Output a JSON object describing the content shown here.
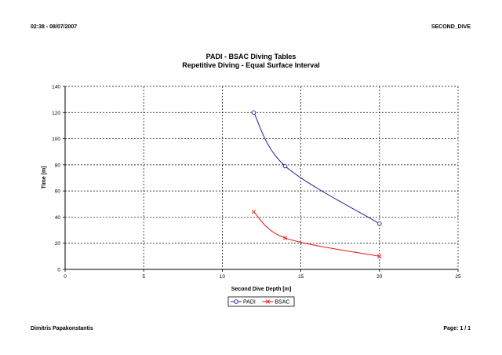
{
  "header": {
    "left": "02:38 - 08/07/2007",
    "right": "SECOND_DIVE"
  },
  "footer": {
    "left": "Dimitris Papakonstantis",
    "right": "Page: 1 / 1"
  },
  "colors": {
    "padi": "#1f1fa0",
    "bsac": "#ee1111",
    "grid": "#000000"
  },
  "chart_data": {
    "type": "line",
    "title": "PADI - BSAC Diving Tables",
    "subtitle": "Repetitive Diving - Equal Surface Interval",
    "xlabel": "Second Dive Depth [m]",
    "ylabel": "Time [m]",
    "xlim": [
      0,
      25
    ],
    "ylim": [
      0,
      140
    ],
    "xticks": [
      0,
      5,
      10,
      15,
      20,
      25
    ],
    "yticks": [
      0,
      20,
      40,
      60,
      80,
      100,
      120,
      140
    ],
    "grid": true,
    "legend": "bottom-center",
    "series": [
      {
        "name": "PADI",
        "marker": "circle",
        "x": [
          12,
          14,
          20
        ],
        "y": [
          120,
          79,
          35
        ]
      },
      {
        "name": "BSAC",
        "marker": "x",
        "x": [
          12,
          14,
          20
        ],
        "y": [
          44,
          24,
          10
        ]
      }
    ]
  }
}
